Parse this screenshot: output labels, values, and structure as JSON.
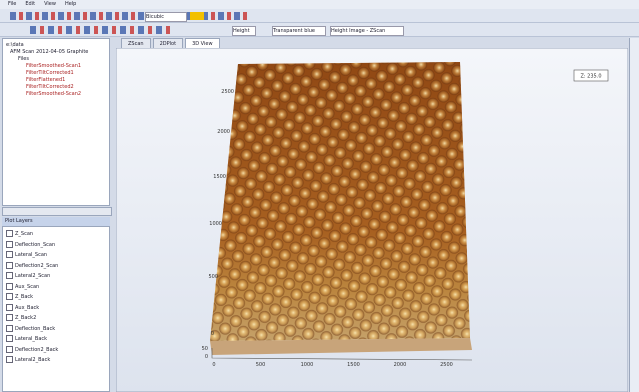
{
  "menu": [
    "File",
    "Edit",
    "View",
    "Help"
  ],
  "toolbar": {
    "style": "Bicubic",
    "view": "Height",
    "colormap": "Transparent blue",
    "source": "Height Image - ZScan"
  },
  "tabs": [
    "ZScan",
    "2DPlot",
    "3D View"
  ],
  "tree": [
    "e:\\data",
    "AFM Scan 2012-04-05 Graphite",
    "Files",
    "FilterSmoothed-Scan1",
    "FilterTiltCorrected1",
    "FilterFlattened1",
    "FilterTiltCorrected2",
    "FilterSmoothed-Scan2"
  ],
  "list_header": "Plot Layers",
  "list": [
    "Z_Scan",
    "Deflection_Scan",
    "Lateral_Scan",
    "Deflection2_Scan",
    "Lateral2_Scan",
    "Aux_Scan",
    "Z_Back",
    "Aux_Back",
    "Z_Back2",
    "Deflection_Back",
    "Lateral_Back",
    "Deflection2_Back",
    "Lateral2_Back"
  ],
  "value_box": "Z: 235.0",
  "plot": {
    "y_labels": [
      "2500",
      "2000",
      "1500",
      "1000",
      "500",
      "0"
    ],
    "x_labels": [
      "0",
      "500",
      "1000",
      "1500",
      "2000",
      "2500"
    ],
    "z_labels": [
      "50",
      "0"
    ]
  }
}
